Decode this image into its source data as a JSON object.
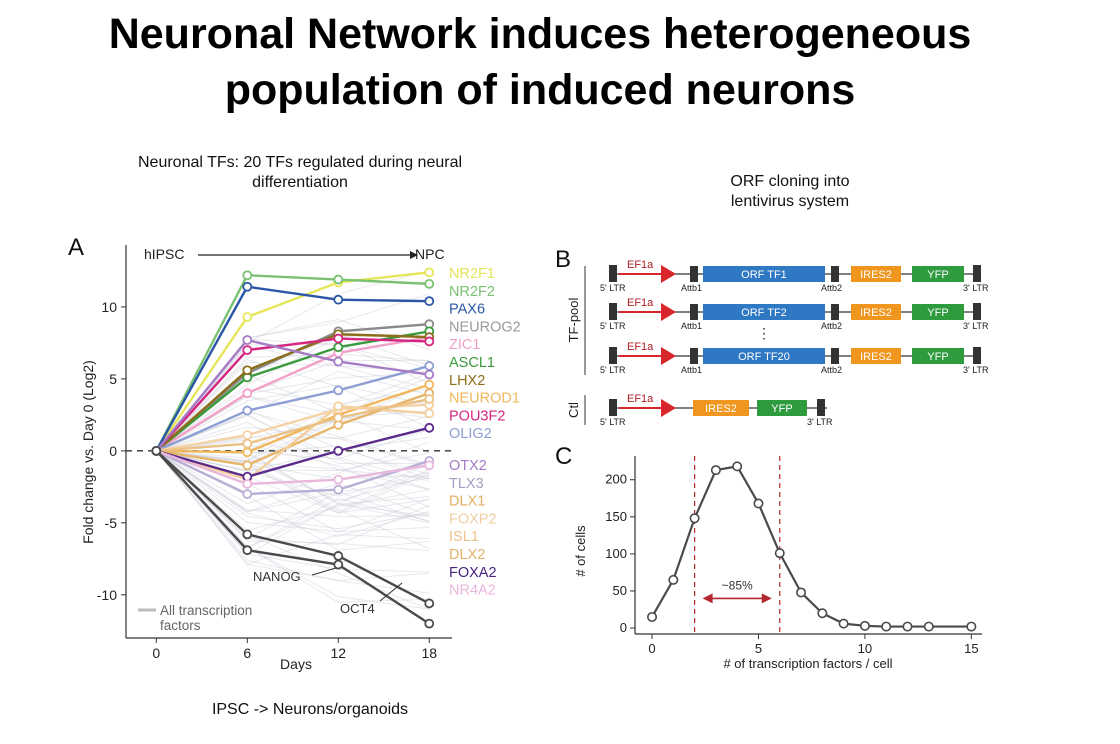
{
  "slide": {
    "title_line1": "Neuronal Network induces heterogeneous",
    "title_line2": "population of induced neurons",
    "caption_a_line1": "Neuronal TFs: 20 TFs regulated during neural",
    "caption_a_line2": "differentiation",
    "caption_b_line1": "ORF cloning into",
    "caption_b_line2": "lentivirus system",
    "caption_bottom": "IPSC -> Neurons/organoids"
  },
  "panel_labels": {
    "a": "A",
    "b": "B",
    "c": "C"
  },
  "panel_a": {
    "start_label": "hIPSC",
    "end_label": "NPC",
    "nanog_label": "NANOG",
    "oct4_label": "OCT4",
    "legend_line1": "All transcription",
    "legend_line2": "factors"
  },
  "panel_b": {
    "tf_pool_label": "TF-pool",
    "ctl_label": "Ctl",
    "ef1a": "EF1a",
    "ltr5": "5' LTR",
    "ltr3": "3' LTR",
    "attb1": "Attb1",
    "attb2": "Attb2",
    "ires": "IRES2",
    "yfp": "YFP",
    "orf1": "ORF TF1",
    "orf2": "ORF TF2",
    "orf20": "ORF TF20",
    "dots": "⋮",
    "colors": {
      "orf": "#2f78c4",
      "ires": "#f0961e",
      "yfp": "#2e9b3e",
      "promoter": "#d8262c",
      "ltr": "#333333"
    }
  },
  "chart_data": [
    {
      "type": "line",
      "xlabel": "Days",
      "ylabel": "Fold change vs. Day 0 (Log2)",
      "x": [
        0,
        6,
        12,
        18
      ],
      "xticks": [
        0,
        6,
        12,
        18
      ],
      "yticks": [
        -10,
        -5,
        0,
        5,
        10
      ],
      "xlim": [
        -2,
        19.5
      ],
      "ylim": [
        -13,
        14.3
      ],
      "series": [
        {
          "name": "NR2F1",
          "color": "#e6e65a",
          "values": [
            0,
            9.3,
            11.7,
            12.4
          ]
        },
        {
          "name": "NR2F2",
          "color": "#7ac172",
          "values": [
            0,
            12.2,
            11.9,
            11.6
          ]
        },
        {
          "name": "PAX6",
          "color": "#2b56a5",
          "values": [
            0,
            11.4,
            10.5,
            10.4
          ]
        },
        {
          "name": "NEUROG2",
          "color": "#8a8a8a",
          "values": [
            0,
            5.4,
            8.3,
            8.8
          ]
        },
        {
          "name": "ZIC1",
          "color": "#f2a0c8",
          "values": [
            0,
            4.0,
            6.8,
            7.9
          ]
        },
        {
          "name": "ASCL1",
          "color": "#3a9a3c",
          "values": [
            0,
            5.1,
            7.2,
            8.3
          ]
        },
        {
          "name": "LHX2",
          "color": "#8b6d1a",
          "values": [
            0,
            5.6,
            8.1,
            7.9
          ]
        },
        {
          "name": "NEUROD1",
          "color": "#f0b65a",
          "values": [
            0,
            -0.1,
            2.5,
            4.6
          ]
        },
        {
          "name": "POU3F2",
          "color": "#d6257f",
          "values": [
            0,
            7.0,
            7.8,
            7.6
          ]
        },
        {
          "name": "OLIG2",
          "color": "#8c9ed4",
          "values": [
            0,
            2.8,
            4.2,
            5.9
          ]
        },
        {
          "name": "OTX2",
          "color": "#a67cc6",
          "values": [
            0,
            7.7,
            6.2,
            5.3
          ]
        },
        {
          "name": "TLX3",
          "color": "#b9aed6",
          "values": [
            0,
            -3.0,
            -2.7,
            -0.7
          ]
        },
        {
          "name": "DLX1",
          "color": "#e6b56a",
          "values": [
            0,
            -1.0,
            1.8,
            4.0
          ]
        },
        {
          "name": "FOXP2",
          "color": "#f5d3a6",
          "values": [
            0,
            1.1,
            2.9,
            3.2
          ]
        },
        {
          "name": "ISL1",
          "color": "#f3cf9c",
          "values": [
            0,
            -2.0,
            3.1,
            2.6
          ]
        },
        {
          "name": "DLX2",
          "color": "#eac184",
          "values": [
            0,
            0.5,
            2.3,
            3.6
          ]
        },
        {
          "name": "FOXA2",
          "color": "#5b2a8c",
          "values": [
            0,
            -1.8,
            0.0,
            1.6
          ]
        },
        {
          "name": "NR4A2",
          "color": "#e9b7dc",
          "values": [
            0,
            -2.3,
            -2.0,
            -1.0
          ]
        },
        {
          "name": "NANOG",
          "color": "#4a4a4a",
          "values": [
            0,
            -6.9,
            -7.9,
            -12.0
          ]
        },
        {
          "name": "OCT4",
          "color": "#4a4a4a",
          "values": [
            0,
            -5.8,
            -7.3,
            -10.6
          ]
        }
      ],
      "legend_order": [
        "NR2F1",
        "NR2F2",
        "PAX6",
        "NEUROG2",
        "ZIC1",
        "ASCL1",
        "LHX2",
        "NEUROD1",
        "POU3F2",
        "OLIG2",
        "OTX2",
        "TLX3",
        "DLX1",
        "FOXP2",
        "ISL1",
        "DLX2",
        "FOXA2",
        "NR4A2"
      ],
      "legend_colors": [
        "#e4e45a",
        "#7ac172",
        "#2b56a5",
        "#9a9a9a",
        "#f2a0c8",
        "#3a9a3c",
        "#8b6d1a",
        "#f0b65a",
        "#d6257f",
        "#8c9ed4",
        "#a67cc6",
        "#a39fc0",
        "#e3ae5f",
        "#f0cca0",
        "#efc28a",
        "#e3b06c",
        "#4a2383",
        "#e9b7dc"
      ],
      "reference_line_y": 0
    },
    {
      "type": "line",
      "xlabel": "# of transcription factors / cell",
      "ylabel": "# of cells",
      "x": [
        0,
        1,
        2,
        3,
        4,
        5,
        6,
        7,
        8,
        9,
        10,
        11,
        12,
        13,
        15
      ],
      "values": [
        15,
        65,
        148,
        213,
        218,
        168,
        101,
        48,
        20,
        6,
        3,
        2,
        2,
        2,
        2
      ],
      "xticks": [
        0,
        5,
        10,
        15
      ],
      "yticks": [
        0,
        50,
        100,
        150,
        200
      ],
      "xlim": [
        -0.8,
        15.5
      ],
      "ylim": [
        -8,
        232
      ],
      "annotation": "~85%",
      "dashed_lines_x": [
        2,
        6
      ]
    }
  ]
}
